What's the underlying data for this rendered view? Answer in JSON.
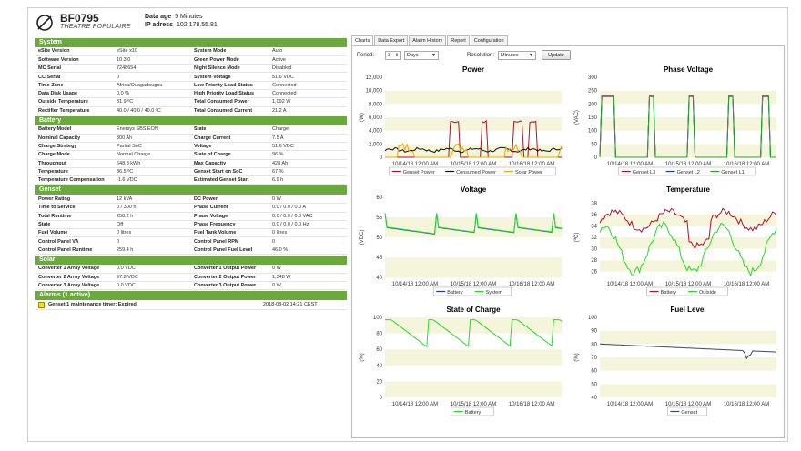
{
  "header": {
    "site_id": "BF0795",
    "site_name": "THEATRE POPULAIRE",
    "data_age_label": "Data age",
    "data_age_value": "5 Minutes",
    "ip_label": "IP adress",
    "ip_value": "102.178.55.81"
  },
  "sections": [
    {
      "title": "System",
      "rows": [
        [
          "eSite Version",
          "eSite x10",
          "System Mode",
          "Auto"
        ],
        [
          "Software Version",
          "10.3.0",
          "Green Power Mode",
          "Active"
        ],
        [
          "MC Serial",
          "7248654",
          "Night Silence Mode",
          "Disabled"
        ],
        [
          "CC Serial",
          "0",
          "System Voltage",
          "51.6 VDC"
        ],
        [
          "Time Zone",
          "Africa/Ouagadougou",
          "Low Priority Load Status",
          "Connected"
        ],
        [
          "Data Disk Usage",
          "0.0 %",
          "High Priority Load Status",
          "Connected"
        ],
        [
          "Outside Temperature",
          "31.9 ºC",
          "Total Consumed Power",
          "1,092 W"
        ],
        [
          "Rectifier Temperature",
          "40.0 / 40.0 / 40.0 ºC",
          "Total Consumed Current",
          "21.2 A"
        ]
      ]
    },
    {
      "title": "Battery",
      "rows": [
        [
          "Battery Model",
          "Enersys SBS EON",
          "State",
          "Charge"
        ],
        [
          "Nominal Capacity",
          "300 Ah",
          "Charge Current",
          "7.5 A"
        ],
        [
          "Charge Strategy",
          "Partial SoC",
          "Voltage",
          "51.6 VDC"
        ],
        [
          "Charge Mode",
          "Normal Charge",
          "State of Charge",
          "96 %"
        ],
        [
          "Throughput",
          "648.8 kWh",
          "Max Capacity",
          "428 Ah"
        ],
        [
          "Temperature",
          "36.5 ºC",
          "Genset Start on SoC",
          "67 %"
        ],
        [
          "Temperature Compensation",
          "-1.6 VDC",
          "Estimated Genset Start",
          "6.9 h"
        ]
      ]
    },
    {
      "title": "Genset",
      "rows": [
        [
          "Power Rating",
          "12 kVA",
          "DC Power",
          "0 W"
        ],
        [
          "Time to Service",
          "0 / 300 h",
          "Phase Current",
          "0.0 / 0.0 / 0.0 A"
        ],
        [
          "Total Runtime",
          "258.2 h",
          "Phase Voltage",
          "0.0 / 0.0 / 0.0 VAC"
        ],
        [
          "State",
          "Off",
          "Phase Frequency",
          "0.0 / 0.0 / 0.0 Hz"
        ],
        [
          "Fuel Volume",
          "0 litres",
          "Fuel Tank Volume",
          "0 litres"
        ],
        [
          "Control Panel VA",
          "0",
          "Control Panel RPM",
          "0"
        ],
        [
          "Control Panel Runtime",
          "259.4 h",
          "Control Panel Fuel Level",
          "46.0 %"
        ]
      ]
    },
    {
      "title": "Solar",
      "rows": [
        [
          "Converter 1 Array Voltage",
          "0.0 VDC",
          "Converter 1 Output Power",
          "0 W"
        ],
        [
          "Converter 2 Array Voltage",
          "97.8 VDC",
          "Converter 2 Output Power",
          "1,348 W"
        ],
        [
          "Converter 3 Array Voltage",
          "0.0 VDC",
          "Converter 3 Output Power",
          "0 W"
        ]
      ]
    }
  ],
  "alarms": {
    "title": "Alarms (1 active)",
    "items": [
      {
        "text": "Genset 1 maintenance timer: Expired",
        "time": "2018-08-02 14:21 CEST",
        "color": "#f1e21e"
      }
    ]
  },
  "tabs": [
    "Charts",
    "Data Export",
    "Alarm History",
    "Report",
    "Configuration"
  ],
  "controls": {
    "period_label": "Period:",
    "period_value": "3",
    "period_unit": "Days",
    "resolution_label": "Resolution:",
    "resolution_value": "Minutes",
    "update_label": "Update"
  },
  "colors": {
    "section_green": "#6aaa3c",
    "genset": "#b0102a",
    "consumed": "#111111",
    "solar": "#f0a500",
    "battery": "#1a35c4",
    "system": "#22dd22",
    "outside": "#22dd22",
    "fuel": "#3c4a5a"
  },
  "chart_data": [
    {
      "type": "line",
      "title": "Power",
      "ylabel": "(W)",
      "ylim": [
        0,
        12000
      ],
      "yticks": [
        "0",
        "2,000",
        "4,000",
        "6,000",
        "8,000",
        "10,000",
        "12,000"
      ],
      "xticks": [
        "10/14/18 12:00 AM",
        "10/15/18 12:00 AM",
        "10/16/18 12:00 AM"
      ],
      "series": [
        {
          "name": "Genset Power",
          "color": "#b0102a"
        },
        {
          "name": "Consumed Power",
          "color": "#111111"
        },
        {
          "name": "Solar Power",
          "color": "#f0a500"
        }
      ]
    },
    {
      "type": "line",
      "title": "Phase Voltage",
      "ylabel": "(VAC)",
      "ylim": [
        0,
        300
      ],
      "yticks": [
        "0",
        "50",
        "100",
        "150",
        "200",
        "250",
        "300"
      ],
      "xticks": [
        "10/14/18 12:00 AM",
        "10/15/18 12:00 AM",
        "10/16/18 12:00 AM"
      ],
      "series": [
        {
          "name": "Genset L3",
          "color": "#b0102a"
        },
        {
          "name": "Genset L2",
          "color": "#1a35c4"
        },
        {
          "name": "Genset L1",
          "color": "#22aa22"
        }
      ]
    },
    {
      "type": "line",
      "title": "Voltage",
      "ylabel": "(VDC)",
      "ylim": [
        40,
        60
      ],
      "yticks": [
        "40",
        "45",
        "50",
        "55",
        "60"
      ],
      "xticks": [
        "10/14/18 12:00 AM",
        "10/15/18 12:00 AM",
        "10/16/18 12:00 AM"
      ],
      "series": [
        {
          "name": "Battery",
          "color": "#1a35c4"
        },
        {
          "name": "System",
          "color": "#22dd22"
        }
      ]
    },
    {
      "type": "line",
      "title": "Temperature",
      "ylabel": "(ºC)",
      "ylim": [
        25,
        39
      ],
      "yticks": [
        "26",
        "28",
        "30",
        "32",
        "34",
        "36",
        "38"
      ],
      "xticks": [
        "10/14/18 12:00 AM",
        "10/15/18 12:00 AM",
        "10/16/18 12:00 AM"
      ],
      "series": [
        {
          "name": "Battery",
          "color": "#b0102a"
        },
        {
          "name": "Outside",
          "color": "#22dd22"
        }
      ]
    },
    {
      "type": "line",
      "title": "State of Charge",
      "ylabel": "(%)",
      "ylim": [
        0,
        100
      ],
      "yticks": [
        "0",
        "20",
        "40",
        "60",
        "80",
        "100"
      ],
      "xticks": [
        "10/14/18 12:00 AM",
        "10/15/18 12:00 AM",
        "10/16/18 12:00 AM"
      ],
      "series": [
        {
          "name": "Battery",
          "color": "#22dd22"
        }
      ]
    },
    {
      "type": "line",
      "title": "Fuel Level",
      "ylabel": "(%)",
      "ylim": [
        40,
        100
      ],
      "yticks": [
        "40",
        "50",
        "60",
        "70",
        "80",
        "90",
        "100"
      ],
      "xticks": [
        "10/14/18 12:00 AM",
        "10/15/18 12:00 AM",
        "10/16/18 12:00 AM"
      ],
      "series": [
        {
          "name": "Genset",
          "color": "#3c4a5a"
        }
      ]
    }
  ]
}
